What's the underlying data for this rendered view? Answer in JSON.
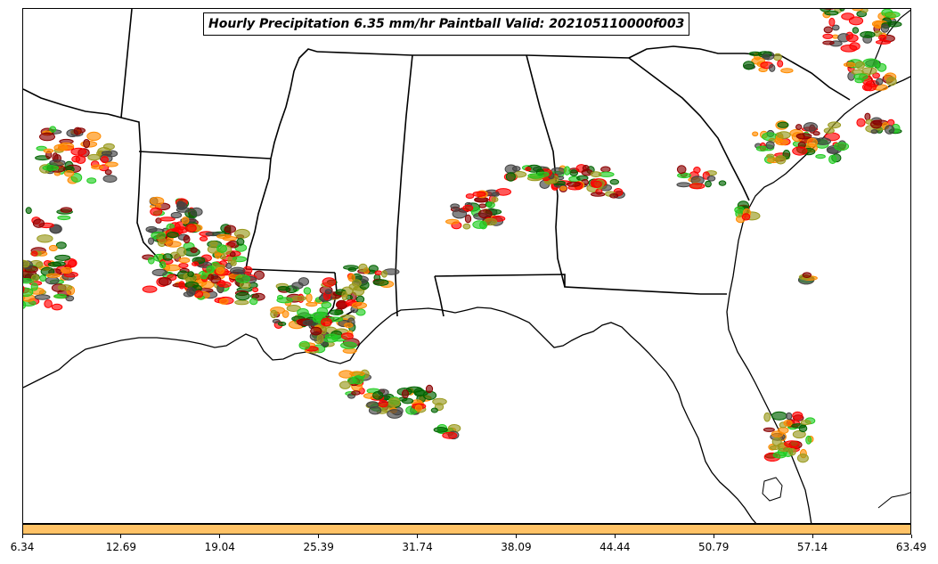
{
  "title": "Hourly Precipitation 6.35 mm/hr Paintball Valid: 202105110000f003",
  "colorbar": {
    "color": "#FFC266",
    "ticks": [
      "6.34",
      "12.69",
      "19.04",
      "25.39",
      "31.74",
      "38.09",
      "44.44",
      "50.79",
      "57.14",
      "63.49"
    ]
  },
  "legend_colors": {
    "red": "#FF0000",
    "orange": "#FF8C00",
    "dark_red": "#8B0000",
    "olive": "#9A9A1E",
    "green": "#22CC22",
    "dark_green": "#006400",
    "gray": "#444444"
  }
}
